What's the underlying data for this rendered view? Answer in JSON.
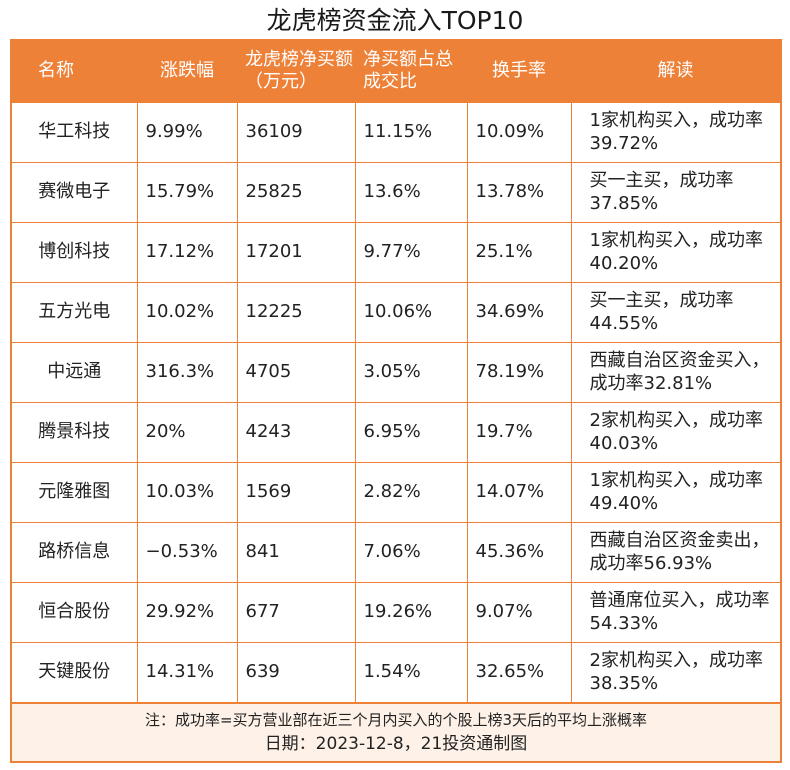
{
  "title": "龙虎榜资金流入TOP10",
  "headers": {
    "name": "名称",
    "change": "涨跌幅",
    "net_buy": "龙虎榜净买额（万元）",
    "net_ratio": "净买额占总成交比",
    "turnover": "换手率",
    "reading": "解读"
  },
  "rows": [
    {
      "name": "华工科技",
      "change": "9.99%",
      "net_buy": "36109",
      "net_ratio": "11.15%",
      "turnover": "10.09%",
      "reading": "1家机构买入，成功率39.72%"
    },
    {
      "name": "赛微电子",
      "change": "15.79%",
      "net_buy": "25825",
      "net_ratio": "13.6%",
      "turnover": "13.78%",
      "reading": "买一主买，成功率37.85%"
    },
    {
      "name": "博创科技",
      "change": "17.12%",
      "net_buy": "17201",
      "net_ratio": "9.77%",
      "turnover": "25.1%",
      "reading": "1家机构买入，成功率40.20%"
    },
    {
      "name": "五方光电",
      "change": "10.02%",
      "net_buy": "12225",
      "net_ratio": "10.06%",
      "turnover": "34.69%",
      "reading": "买一主买，成功率44.55%"
    },
    {
      "name": "中远通",
      "change": "316.3%",
      "net_buy": "4705",
      "net_ratio": "3.05%",
      "turnover": "78.19%",
      "reading": "西藏自治区资金买入，成功率32.81%"
    },
    {
      "name": "腾景科技",
      "change": "20%",
      "net_buy": "4243",
      "net_ratio": "6.95%",
      "turnover": "19.7%",
      "reading": "2家机构买入，成功率40.03%"
    },
    {
      "name": "元隆雅图",
      "change": "10.03%",
      "net_buy": "1569",
      "net_ratio": "2.82%",
      "turnover": "14.07%",
      "reading": "1家机构买入，成功率49.40%"
    },
    {
      "name": "路桥信息",
      "change": "−0.53%",
      "net_buy": "841",
      "net_ratio": "7.06%",
      "turnover": "45.36%",
      "reading": "西藏自治区资金卖出，成功率56.93%"
    },
    {
      "name": "恒合股份",
      "change": "29.92%",
      "net_buy": "677",
      "net_ratio": "19.26%",
      "turnover": "9.07%",
      "reading": "普通席位买入，成功率54.33%"
    },
    {
      "name": "天键股份",
      "change": "14.31%",
      "net_buy": "639",
      "net_ratio": "1.54%",
      "turnover": "32.65%",
      "reading": "2家机构买入，成功率38.35%"
    }
  ],
  "footer": {
    "note": "注：成功率=买方营业部在近三个月内买入的个股上榜3天后的平均上涨概率",
    "date": "日期：2023-12-8，21投资通制图"
  },
  "colors": {
    "accent": "#ee8138",
    "footer_bg": "#fdf1e8"
  }
}
